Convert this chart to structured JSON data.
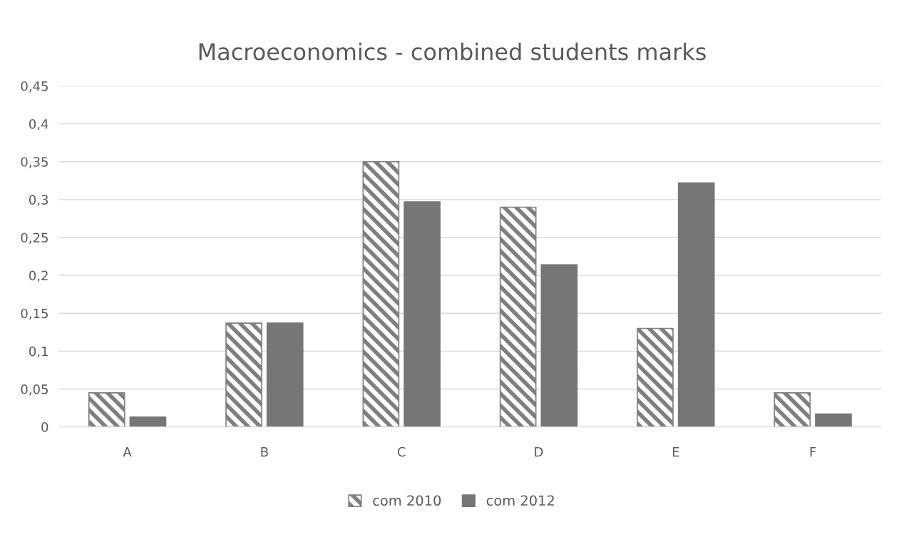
{
  "chart_data": {
    "type": "bar",
    "title": "Macroeconomics - combined students marks",
    "categories": [
      "A",
      "B",
      "C",
      "D",
      "E",
      "F"
    ],
    "series": [
      {
        "name": "com 2010",
        "color": "#7f7f7f",
        "values": [
          0.045,
          0.137,
          0.35,
          0.29,
          0.13,
          0.045
        ]
      },
      {
        "name": "com 2012",
        "color": "#767676",
        "values": [
          0.013,
          0.137,
          0.297,
          0.214,
          0.322,
          0.017
        ]
      }
    ],
    "ylim": [
      0,
      0.45
    ],
    "yticks": [
      {
        "value": 0,
        "label": "0"
      },
      {
        "value": 0.05,
        "label": "0,05"
      },
      {
        "value": 0.1,
        "label": "0,1"
      },
      {
        "value": 0.15,
        "label": "0,15"
      },
      {
        "value": 0.2,
        "label": "0,2"
      },
      {
        "value": 0.25,
        "label": "0,25"
      },
      {
        "value": 0.3,
        "label": "0,3"
      },
      {
        "value": 0.35,
        "label": "0,35"
      },
      {
        "value": 0.4,
        "label": "0,4"
      },
      {
        "value": 0.45,
        "label": "0,45"
      }
    ],
    "grid": "y",
    "legend": "bottom"
  }
}
